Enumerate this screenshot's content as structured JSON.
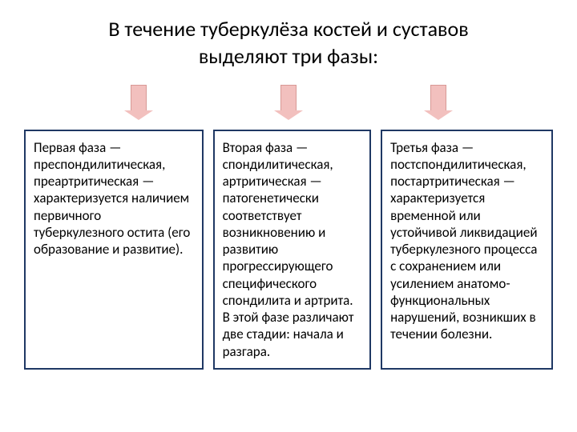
{
  "title_line1": "В течение туберкулёза костей и суставов",
  "title_line2": "выделяют три фазы:",
  "arrow_style": {
    "fill_color": "#f2c0be",
    "border_color": "#d89995",
    "body_width": 20,
    "body_height": 32,
    "head_width": 36,
    "head_height": 12
  },
  "box_border_color": "#1f3864",
  "background_color": "#ffffff",
  "text_color": "#000000",
  "title_fontsize": 26,
  "box_fontsize": 17,
  "boxes": [
    {
      "text": "Первая фаза — преспондилитическая, преартритическая — характеризуется наличием первичного туберкулезного остита (его образование и развитие)."
    },
    {
      "text": "Вторая фаза — спондилитическая, артритическая — патогенетически соответствует возникновению и развитию прогрессирующего специфического спондилита и артрита. В этой фазе различают две стадии: начала и разгара."
    },
    {
      "text": "Третья фаза — постспондилитическая, постартритическая — характеризуется временной или устойчивой ликвидацией туберкулезного процесса с сохранением или усилением анатомо-функциональных нарушений, возникших в течении болезни."
    }
  ]
}
